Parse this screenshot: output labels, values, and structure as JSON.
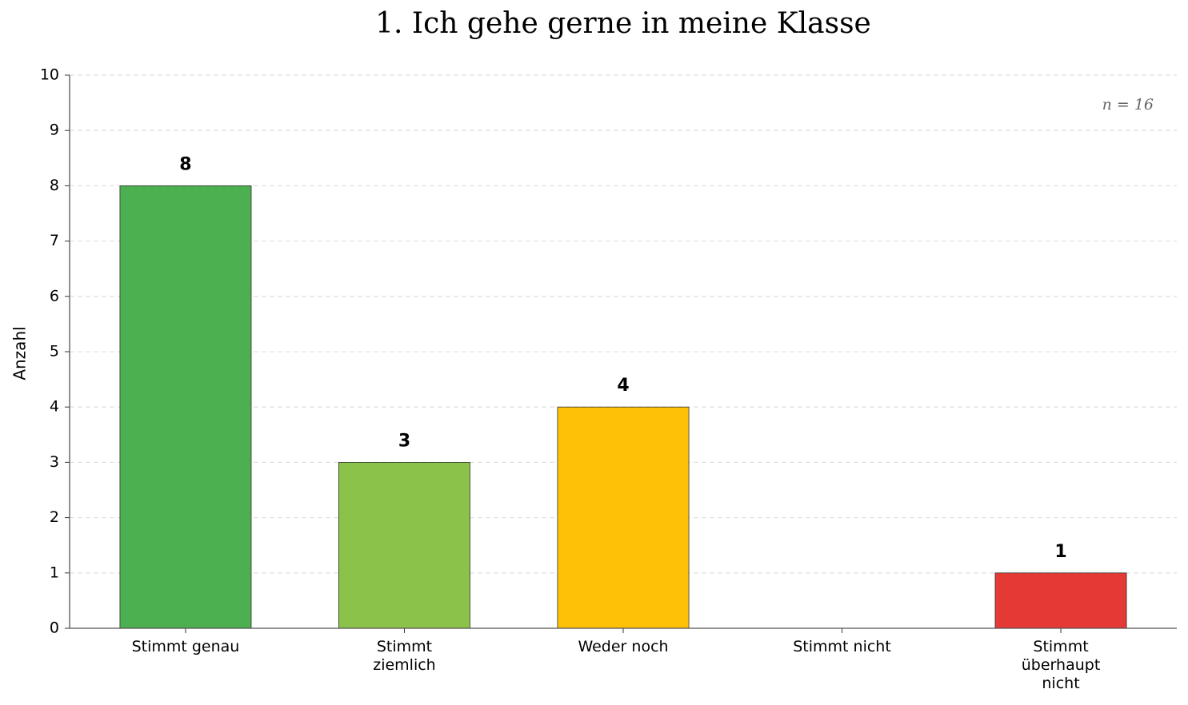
{
  "chart_data": {
    "type": "bar",
    "title": "1. Ich gehe gerne in meine Klasse",
    "y_label": "Anzahl",
    "annotation": "n = 16",
    "categories": [
      "Stimmt genau",
      "Stimmt\nziemlich",
      "Weder noch",
      "Stimmt nicht",
      "Stimmt\nüberhaupt\nnicht"
    ],
    "values": [
      8,
      3,
      4,
      0,
      1
    ],
    "value_labels": [
      "8",
      "3",
      "4",
      null,
      "1"
    ],
    "colors": [
      "#4caf50",
      "#8bc34a",
      "#ffc107",
      "#ff9800",
      "#e53935"
    ],
    "ylim": [
      0,
      10
    ],
    "yticks": [
      0,
      1,
      2,
      3,
      4,
      5,
      6,
      7,
      8,
      9,
      10
    ],
    "grid": true
  }
}
